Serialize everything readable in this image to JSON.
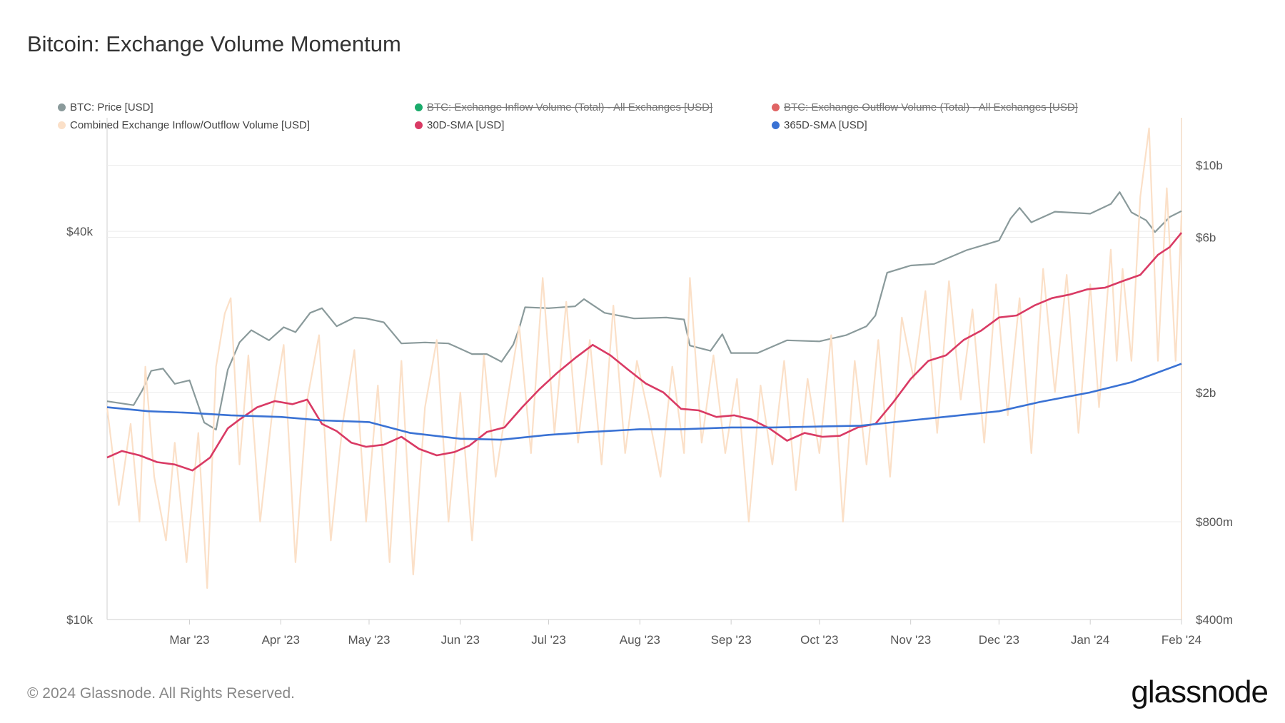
{
  "title": "Bitcoin: Exchange Volume Momentum",
  "footer": "© 2024 Glassnode. All Rights Reserved.",
  "logo": "glassnode",
  "chart_data": {
    "type": "line",
    "title": "Bitcoin: Exchange Volume Momentum",
    "x_range": [
      "2023-02-01",
      "2024-02-01"
    ],
    "x_ticks": [
      "Mar '23",
      "Apr '23",
      "May '23",
      "Jun '23",
      "Jul '23",
      "Aug '23",
      "Sep '23",
      "Oct '23",
      "Nov '23",
      "Dec '23",
      "Jan '24",
      "Feb '24"
    ],
    "y_left": {
      "scale": "log",
      "range": [
        10000,
        60000
      ],
      "tick_values": [
        10000,
        40000
      ],
      "tick_labels": [
        "$10k",
        "$40k"
      ]
    },
    "y_right": {
      "scale": "log",
      "range": [
        400000000,
        14000000000
      ],
      "tick_values": [
        400000000,
        800000000,
        2000000000,
        6000000000,
        10000000000
      ],
      "tick_labels": [
        "$400m",
        "$800m",
        "$2b",
        "$6b",
        "$10b"
      ]
    },
    "legend": [
      {
        "label": "BTC: Price [USD]",
        "color": "#8a9a9b",
        "disabled": false
      },
      {
        "label": "BTC: Exchange Inflow Volume (Total) - All Exchanges [USD]",
        "color": "#1aab6b",
        "disabled": true
      },
      {
        "label": "BTC: Exchange Outflow Volume (Total) - All Exchanges [USD]",
        "color": "#e06464",
        "disabled": true
      },
      {
        "label": "Combined Exchange Inflow/Outflow Volume [USD]",
        "color": "#fbe0c8",
        "disabled": false
      },
      {
        "label": "30D-SMA [USD]",
        "color": "#d93a64",
        "disabled": false
      },
      {
        "label": "365D-SMA [USD]",
        "color": "#3a72d4",
        "disabled": false
      }
    ],
    "series": [
      {
        "name": "BTC: Price [USD]",
        "axis": "left",
        "color": "#8a9a9b",
        "x": [
          "2023-02-01",
          "2023-02-10",
          "2023-02-13",
          "2023-02-16",
          "2023-02-20",
          "2023-02-24",
          "2023-03-01",
          "2023-03-06",
          "2023-03-10",
          "2023-03-14",
          "2023-03-18",
          "2023-03-22",
          "2023-03-28",
          "2023-04-02",
          "2023-04-06",
          "2023-04-11",
          "2023-04-15",
          "2023-04-20",
          "2023-04-26",
          "2023-04-30",
          "2023-05-06",
          "2023-05-12",
          "2023-05-20",
          "2023-05-28",
          "2023-06-05",
          "2023-06-10",
          "2023-06-15",
          "2023-06-19",
          "2023-06-21",
          "2023-06-23",
          "2023-07-01",
          "2023-07-10",
          "2023-07-13",
          "2023-07-20",
          "2023-07-30",
          "2023-08-10",
          "2023-08-16",
          "2023-08-18",
          "2023-08-25",
          "2023-08-29",
          "2023-09-01",
          "2023-09-10",
          "2023-09-20",
          "2023-10-01",
          "2023-10-10",
          "2023-10-17",
          "2023-10-20",
          "2023-10-24",
          "2023-11-01",
          "2023-11-09",
          "2023-11-20",
          "2023-12-01",
          "2023-12-05",
          "2023-12-08",
          "2023-12-12",
          "2023-12-20",
          "2024-01-01",
          "2024-01-08",
          "2024-01-11",
          "2024-01-15",
          "2024-01-20",
          "2024-01-23",
          "2024-01-28",
          "2024-02-01"
        ],
        "values": [
          21800,
          21500,
          22700,
          24300,
          24500,
          23200,
          23500,
          20200,
          19700,
          24400,
          26900,
          28100,
          27100,
          28400,
          27900,
          29900,
          30400,
          28500,
          29400,
          29300,
          28900,
          26800,
          26900,
          26800,
          25800,
          25800,
          25100,
          26700,
          28300,
          30500,
          30400,
          30600,
          31400,
          29900,
          29300,
          29400,
          29200,
          26600,
          26100,
          27700,
          25900,
          25900,
          27100,
          27000,
          27600,
          28500,
          29600,
          34500,
          35400,
          35600,
          37400,
          38700,
          41900,
          43500,
          41300,
          42900,
          42600,
          44100,
          46000,
          42800,
          41600,
          39900,
          42100,
          43000
        ]
      },
      {
        "name": "Combined Exchange Inflow/Outflow Volume [USD]",
        "axis": "right",
        "color": "#fbe0c8",
        "x": [
          "2023-02-01",
          "2023-02-05",
          "2023-02-09",
          "2023-02-12",
          "2023-02-14",
          "2023-02-17",
          "2023-02-21",
          "2023-02-24",
          "2023-02-28",
          "2023-03-04",
          "2023-03-07",
          "2023-03-10",
          "2023-03-13",
          "2023-03-15",
          "2023-03-18",
          "2023-03-21",
          "2023-03-25",
          "2023-03-29",
          "2023-04-02",
          "2023-04-06",
          "2023-04-10",
          "2023-04-14",
          "2023-04-18",
          "2023-04-22",
          "2023-04-26",
          "2023-04-30",
          "2023-05-04",
          "2023-05-08",
          "2023-05-12",
          "2023-05-16",
          "2023-05-20",
          "2023-05-24",
          "2023-05-28",
          "2023-06-01",
          "2023-06-05",
          "2023-06-09",
          "2023-06-13",
          "2023-06-17",
          "2023-06-21",
          "2023-06-25",
          "2023-06-29",
          "2023-07-03",
          "2023-07-07",
          "2023-07-11",
          "2023-07-15",
          "2023-07-19",
          "2023-07-23",
          "2023-07-27",
          "2023-07-31",
          "2023-08-04",
          "2023-08-08",
          "2023-08-12",
          "2023-08-16",
          "2023-08-18",
          "2023-08-22",
          "2023-08-26",
          "2023-08-30",
          "2023-09-03",
          "2023-09-07",
          "2023-09-11",
          "2023-09-15",
          "2023-09-19",
          "2023-09-23",
          "2023-09-27",
          "2023-10-01",
          "2023-10-05",
          "2023-10-09",
          "2023-10-13",
          "2023-10-17",
          "2023-10-21",
          "2023-10-25",
          "2023-10-29",
          "2023-11-02",
          "2023-11-06",
          "2023-11-10",
          "2023-11-14",
          "2023-11-18",
          "2023-11-22",
          "2023-11-26",
          "2023-11-30",
          "2023-12-04",
          "2023-12-08",
          "2023-12-12",
          "2023-12-16",
          "2023-12-20",
          "2023-12-24",
          "2023-12-28",
          "2024-01-01",
          "2024-01-04",
          "2024-01-08",
          "2024-01-10",
          "2024-01-12",
          "2024-01-15",
          "2024-01-18",
          "2024-01-21",
          "2024-01-24",
          "2024-01-27",
          "2024-01-30",
          "2024-02-01"
        ],
        "values": [
          1800000000,
          900000000,
          1600000000,
          800000000,
          2400000000,
          1100000000,
          700000000,
          1400000000,
          600000000,
          1500000000,
          500000000,
          2400000000,
          3500000000,
          3900000000,
          1200000000,
          2600000000,
          800000000,
          1700000000,
          2800000000,
          600000000,
          1900000000,
          3000000000,
          700000000,
          1600000000,
          2700000000,
          800000000,
          2100000000,
          600000000,
          2500000000,
          550000000,
          1800000000,
          2900000000,
          800000000,
          2000000000,
          700000000,
          2600000000,
          1100000000,
          1900000000,
          3200000000,
          1300000000,
          4500000000,
          1500000000,
          3800000000,
          1400000000,
          2900000000,
          1200000000,
          3700000000,
          1300000000,
          2500000000,
          1700000000,
          1100000000,
          2400000000,
          1300000000,
          4500000000,
          1400000000,
          2600000000,
          1300000000,
          2200000000,
          800000000,
          2100000000,
          1200000000,
          2500000000,
          1000000000,
          2200000000,
          1300000000,
          3000000000,
          800000000,
          2500000000,
          1200000000,
          2900000000,
          1100000000,
          3400000000,
          2200000000,
          4100000000,
          1500000000,
          4400000000,
          1900000000,
          3600000000,
          1400000000,
          4300000000,
          1700000000,
          3900000000,
          1300000000,
          4800000000,
          2000000000,
          4600000000,
          1500000000,
          4300000000,
          1800000000,
          5500000000,
          2500000000,
          4800000000,
          2500000000,
          8000000000,
          13000000000,
          2500000000,
          8500000000,
          2500000000,
          7000000000
        ]
      },
      {
        "name": "30D-SMA [USD]",
        "axis": "right",
        "color": "#d93a64",
        "x": [
          "2023-02-01",
          "2023-02-06",
          "2023-02-12",
          "2023-02-18",
          "2023-02-24",
          "2023-03-02",
          "2023-03-08",
          "2023-03-14",
          "2023-03-18",
          "2023-03-24",
          "2023-03-30",
          "2023-04-05",
          "2023-04-10",
          "2023-04-15",
          "2023-04-20",
          "2023-04-25",
          "2023-04-30",
          "2023-05-06",
          "2023-05-12",
          "2023-05-18",
          "2023-05-24",
          "2023-05-30",
          "2023-06-04",
          "2023-06-10",
          "2023-06-16",
          "2023-06-22",
          "2023-06-28",
          "2023-07-04",
          "2023-07-10",
          "2023-07-16",
          "2023-07-22",
          "2023-07-28",
          "2023-08-03",
          "2023-08-09",
          "2023-08-15",
          "2023-08-21",
          "2023-08-27",
          "2023-09-02",
          "2023-09-08",
          "2023-09-14",
          "2023-09-20",
          "2023-09-26",
          "2023-10-02",
          "2023-10-08",
          "2023-10-14",
          "2023-10-20",
          "2023-10-26",
          "2023-11-01",
          "2023-11-07",
          "2023-11-13",
          "2023-11-19",
          "2023-11-25",
          "2023-12-01",
          "2023-12-07",
          "2023-12-13",
          "2023-12-19",
          "2023-12-25",
          "2023-12-31",
          "2024-01-06",
          "2024-01-12",
          "2024-01-18",
          "2024-01-24",
          "2024-01-28",
          "2024-02-01"
        ],
        "values": [
          1260000000,
          1320000000,
          1280000000,
          1220000000,
          1200000000,
          1150000000,
          1260000000,
          1550000000,
          1650000000,
          1800000000,
          1880000000,
          1840000000,
          1900000000,
          1600000000,
          1520000000,
          1400000000,
          1360000000,
          1380000000,
          1460000000,
          1340000000,
          1280000000,
          1310000000,
          1370000000,
          1510000000,
          1560000000,
          1800000000,
          2050000000,
          2300000000,
          2550000000,
          2800000000,
          2600000000,
          2350000000,
          2130000000,
          2000000000,
          1780000000,
          1760000000,
          1680000000,
          1700000000,
          1650000000,
          1550000000,
          1420000000,
          1500000000,
          1460000000,
          1470000000,
          1560000000,
          1600000000,
          1860000000,
          2200000000,
          2500000000,
          2600000000,
          2900000000,
          3100000000,
          3400000000,
          3450000000,
          3700000000,
          3900000000,
          4000000000,
          4150000000,
          4200000000,
          4400000000,
          4600000000,
          5300000000,
          5600000000,
          6200000000
        ]
      },
      {
        "name": "365D-SMA [USD]",
        "axis": "right",
        "color": "#3a72d4",
        "x": [
          "2023-02-01",
          "2023-02-15",
          "2023-03-01",
          "2023-03-15",
          "2023-04-01",
          "2023-04-15",
          "2023-05-01",
          "2023-05-15",
          "2023-06-01",
          "2023-06-15",
          "2023-07-01",
          "2023-07-15",
          "2023-08-01",
          "2023-08-15",
          "2023-09-01",
          "2023-09-15",
          "2023-10-01",
          "2023-10-15",
          "2023-11-01",
          "2023-11-15",
          "2023-12-01",
          "2023-12-15",
          "2024-01-01",
          "2024-01-15",
          "2024-02-01"
        ],
        "values": [
          1800000000,
          1750000000,
          1730000000,
          1700000000,
          1680000000,
          1640000000,
          1620000000,
          1500000000,
          1440000000,
          1430000000,
          1480000000,
          1510000000,
          1540000000,
          1540000000,
          1560000000,
          1560000000,
          1570000000,
          1580000000,
          1640000000,
          1690000000,
          1750000000,
          1870000000,
          2000000000,
          2150000000,
          2450000000
        ]
      }
    ]
  }
}
